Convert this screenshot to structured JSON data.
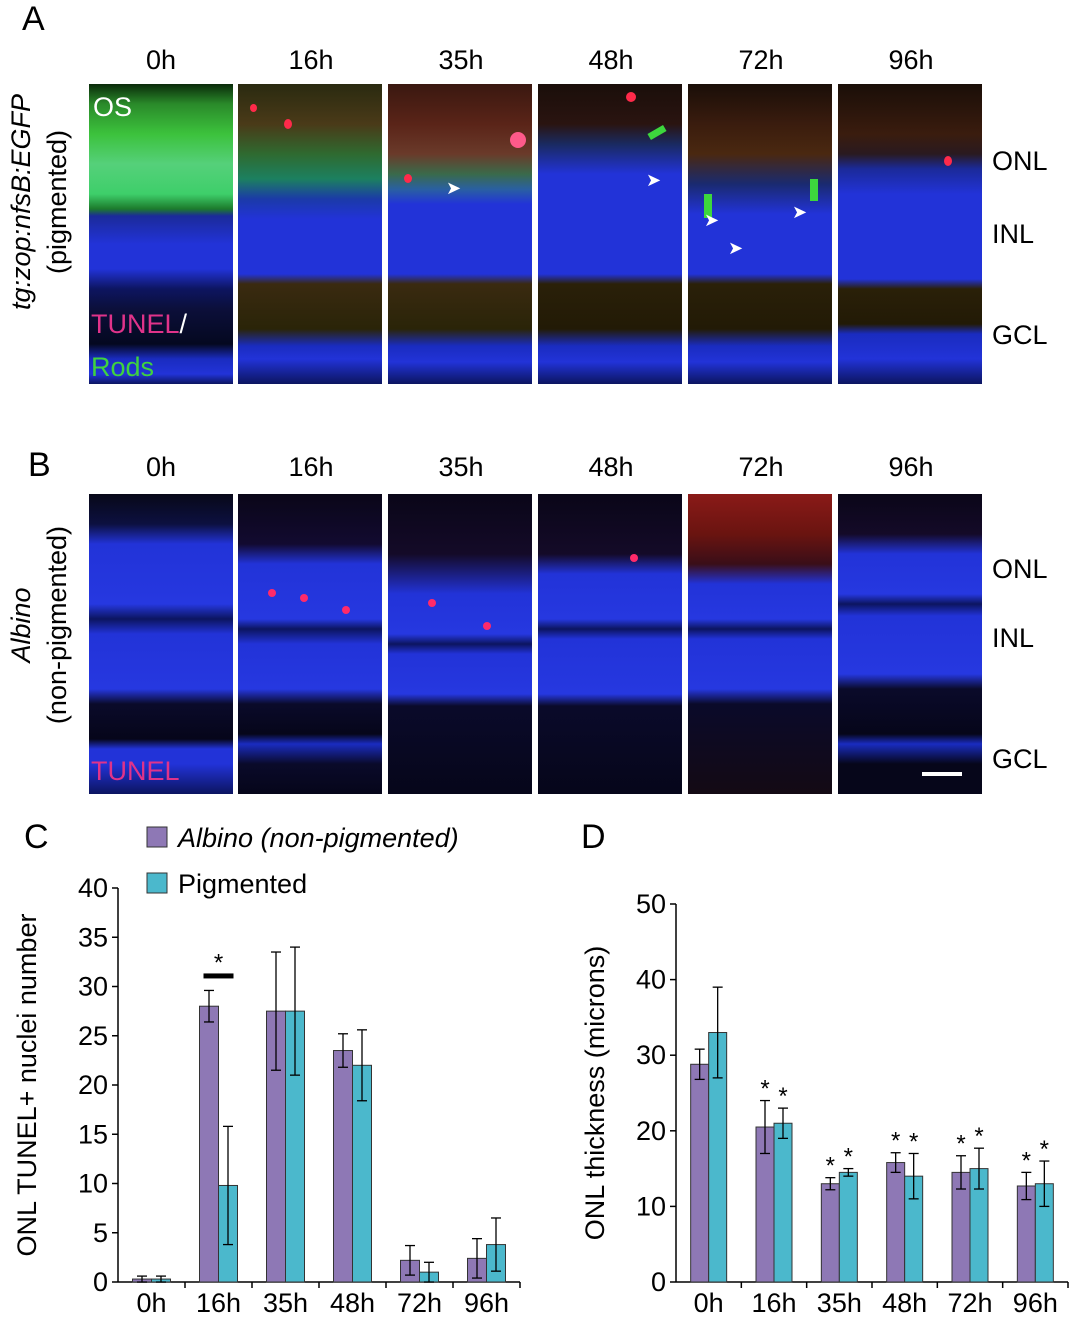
{
  "panelA": {
    "letter": "A",
    "timepoints": [
      "0h",
      "16h",
      "35h",
      "48h",
      "72h",
      "96h"
    ],
    "ylabel_line1": "tg:zop:nfsB:EGFP",
    "ylabel_line2": "(pigmented)",
    "os_label": "OS",
    "stain_tunel": "TUNEL",
    "stain_sep": "/",
    "stain_rods": "Rods",
    "layers": [
      "ONL",
      "INL",
      "GCL"
    ]
  },
  "panelB": {
    "letter": "B",
    "timepoints": [
      "0h",
      "16h",
      "35h",
      "48h",
      "72h",
      "96h"
    ],
    "ylabel_line1": "Albino",
    "ylabel_line2": "(non-pigmented)",
    "stain_tunel": "TUNEL",
    "layers": [
      "ONL",
      "INL",
      "GCL"
    ]
  },
  "colors": {
    "albino": "#8e78b5",
    "pigmented": "#4bb8cc",
    "tunel_text": "#e0338a",
    "rods_text": "#3fd23f",
    "nuclei": "#2233d8",
    "tunel": "#ff2a4a",
    "rods": "#3dd63d"
  },
  "chart_data": [
    {
      "panel": "C",
      "type": "bar",
      "categories": [
        "0h",
        "16h",
        "35h",
        "48h",
        "72h",
        "96h"
      ],
      "series": [
        {
          "name": "Albino (non-pigmented)",
          "values": [
            0.3,
            28,
            27.5,
            23.5,
            2.2,
            2.4
          ],
          "errors": [
            0.3,
            1.6,
            6,
            1.7,
            1.5,
            2
          ]
        },
        {
          "name": "Pigmented",
          "values": [
            0.3,
            9.8,
            27.5,
            22,
            1,
            3.8
          ],
          "errors": [
            0.3,
            6,
            6.5,
            3.6,
            1,
            2.7
          ]
        }
      ],
      "ylabel": "ONL TUNEL+ nuclei number",
      "ylim": [
        0,
        40
      ],
      "yticks": [
        0,
        5,
        10,
        15,
        20,
        25,
        30,
        35,
        40
      ],
      "significance": [
        {
          "category": "16h",
          "label": "*",
          "bracket": true
        }
      ],
      "legend": {
        "position": "top",
        "entries": [
          "Albino (non-pigmented)",
          "Pigmented"
        ]
      }
    },
    {
      "panel": "D",
      "type": "bar",
      "categories": [
        "0h",
        "16h",
        "35h",
        "48h",
        "72h",
        "96h"
      ],
      "series": [
        {
          "name": "Albino (non-pigmented)",
          "values": [
            28.8,
            20.5,
            13,
            15.8,
            14.5,
            12.7
          ],
          "errors": [
            2,
            3.5,
            0.8,
            1.3,
            2.2,
            1.8
          ]
        },
        {
          "name": "Pigmented",
          "values": [
            33,
            21,
            14.5,
            14,
            15,
            13
          ],
          "errors": [
            6,
            2,
            0.5,
            3,
            2.7,
            3
          ]
        }
      ],
      "ylabel": "ONL thickness (microns)",
      "ylim": [
        0,
        50
      ],
      "yticks": [
        0,
        10,
        20,
        30,
        40,
        50
      ],
      "significance_label": "*",
      "significance_categories": [
        "16h",
        "35h",
        "48h",
        "72h",
        "96h"
      ]
    }
  ]
}
